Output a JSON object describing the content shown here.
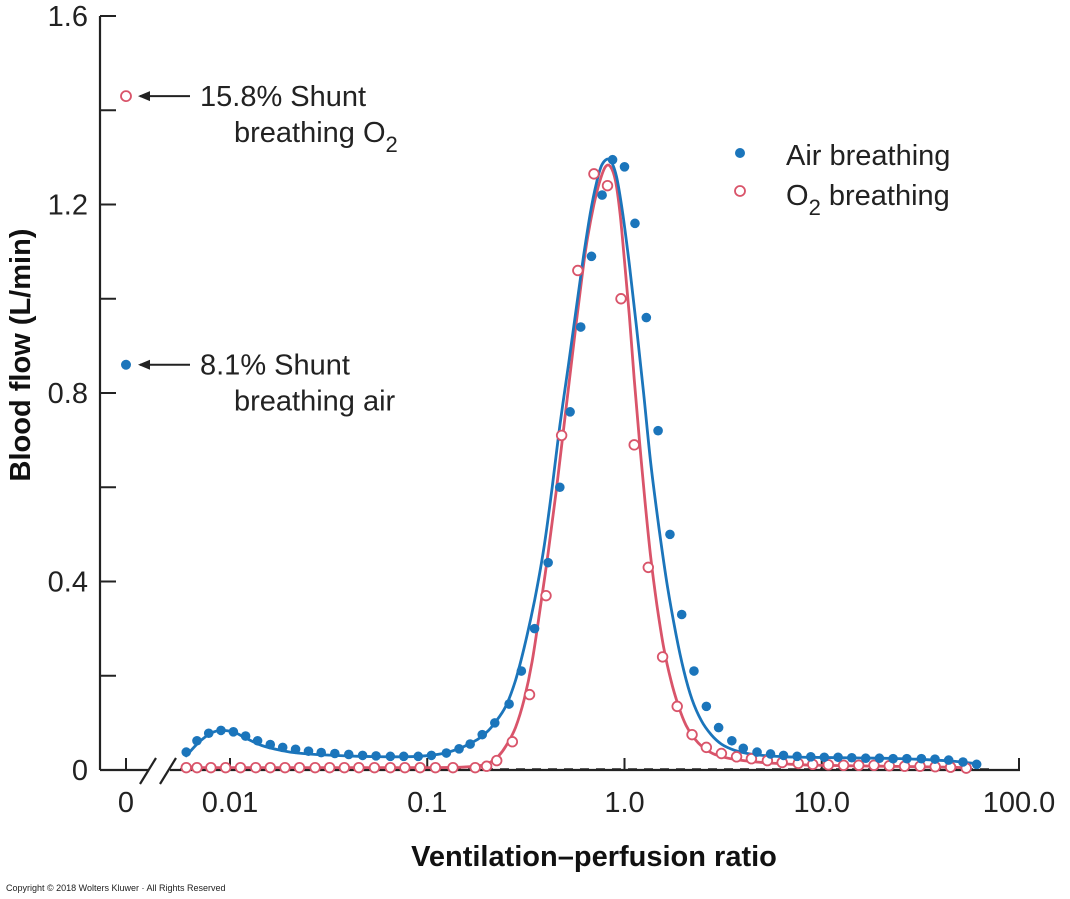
{
  "chart_data": {
    "type": "line",
    "title": "",
    "xlabel": "Ventilation–perfusion ratio",
    "ylabel": "Blood flow (L/min)",
    "x_scale": "log",
    "xlim": [
      0.005,
      100
    ],
    "ylim": [
      0,
      1.6
    ],
    "x_ticks": [
      {
        "value": 0,
        "label": "0"
      },
      {
        "value": 0.01,
        "label": "0.01"
      },
      {
        "value": 0.1,
        "label": "0.1"
      },
      {
        "value": 1.0,
        "label": "1.0"
      },
      {
        "value": 10.0,
        "label": "10.0"
      },
      {
        "value": 100.0,
        "label": "100.0"
      }
    ],
    "y_ticks": [
      {
        "value": 0,
        "label": "0"
      },
      {
        "value": 0.2,
        "label": ""
      },
      {
        "value": 0.4,
        "label": "0.4"
      },
      {
        "value": 0.6,
        "label": ""
      },
      {
        "value": 0.8,
        "label": "0.8"
      },
      {
        "value": 1.0,
        "label": ""
      },
      {
        "value": 1.2,
        "label": "1.2"
      },
      {
        "value": 1.4,
        "label": ""
      },
      {
        "value": 1.6,
        "label": "1.6"
      }
    ],
    "series": [
      {
        "name": "Air breathing",
        "color": "#1b75bb",
        "marker": "filled-circle",
        "curve_x": [
          0.006,
          0.007,
          0.008,
          0.009,
          0.0105,
          0.012,
          0.0145,
          0.018,
          0.022,
          0.03,
          0.045,
          0.065,
          0.09,
          0.12,
          0.15,
          0.18,
          0.2,
          0.22,
          0.25,
          0.28,
          0.31,
          0.35,
          0.39,
          0.43,
          0.47,
          0.52,
          0.57,
          0.62,
          0.67,
          0.72,
          0.77,
          0.84,
          0.91,
          0.98,
          1.06,
          1.15,
          1.25,
          1.36,
          1.5,
          1.65,
          1.82,
          2.0,
          2.2,
          2.45,
          2.75,
          3.1,
          3.6,
          4.2,
          5.0,
          6.5,
          8.5,
          12,
          20,
          30,
          45,
          62
        ],
        "curve_y": [
          0.03,
          0.06,
          0.078,
          0.084,
          0.08,
          0.068,
          0.052,
          0.042,
          0.036,
          0.032,
          0.029,
          0.028,
          0.029,
          0.035,
          0.048,
          0.065,
          0.08,
          0.1,
          0.135,
          0.19,
          0.26,
          0.36,
          0.47,
          0.6,
          0.73,
          0.86,
          0.98,
          1.09,
          1.18,
          1.245,
          1.285,
          1.295,
          1.26,
          1.18,
          1.07,
          0.94,
          0.8,
          0.65,
          0.51,
          0.39,
          0.29,
          0.21,
          0.15,
          0.105,
          0.075,
          0.055,
          0.042,
          0.035,
          0.031,
          0.028,
          0.027,
          0.026,
          0.025,
          0.023,
          0.019,
          0.013
        ],
        "points_x": [
          0.006,
          0.0068,
          0.0078,
          0.009,
          0.0104,
          0.012,
          0.0138,
          0.016,
          0.0185,
          0.0215,
          0.025,
          0.029,
          0.034,
          0.04,
          0.047,
          0.055,
          0.065,
          0.076,
          0.09,
          0.105,
          0.125,
          0.145,
          0.165,
          0.19,
          0.22,
          0.26,
          0.3,
          0.35,
          0.41,
          0.47,
          0.53,
          0.6,
          0.68,
          0.77,
          0.87,
          1.0,
          1.13,
          1.29,
          1.48,
          1.7,
          1.95,
          2.25,
          2.6,
          3.0,
          3.5,
          4.0,
          4.7,
          5.5,
          6.4,
          7.5,
          8.8,
          10.3,
          12.1,
          14.2,
          16.7,
          19.6,
          23,
          27,
          32,
          37.5,
          44,
          52,
          61
        ],
        "points_y": [
          0.038,
          0.062,
          0.078,
          0.084,
          0.081,
          0.072,
          0.062,
          0.054,
          0.048,
          0.044,
          0.04,
          0.037,
          0.035,
          0.033,
          0.031,
          0.03,
          0.029,
          0.029,
          0.029,
          0.031,
          0.036,
          0.045,
          0.055,
          0.075,
          0.1,
          0.14,
          0.21,
          0.3,
          0.44,
          0.6,
          0.76,
          0.94,
          1.09,
          1.22,
          1.295,
          1.28,
          1.16,
          0.96,
          0.72,
          0.5,
          0.33,
          0.21,
          0.135,
          0.09,
          0.062,
          0.046,
          0.038,
          0.034,
          0.031,
          0.029,
          0.028,
          0.027,
          0.027,
          0.026,
          0.025,
          0.025,
          0.024,
          0.024,
          0.024,
          0.023,
          0.021,
          0.017,
          0.012
        ]
      },
      {
        "name": "O₂ breathing",
        "color": "#d9546a",
        "marker": "open-circle",
        "curve_x": [
          0.006,
          0.01,
          0.02,
          0.05,
          0.1,
          0.15,
          0.19,
          0.21,
          0.23,
          0.25,
          0.28,
          0.31,
          0.34,
          0.37,
          0.41,
          0.45,
          0.49,
          0.53,
          0.57,
          0.61,
          0.65,
          0.7,
          0.75,
          0.8,
          0.85,
          0.9,
          0.95,
          1.0,
          1.06,
          1.12,
          1.19,
          1.27,
          1.36,
          1.46,
          1.58,
          1.72,
          1.88,
          2.05,
          2.25,
          2.5,
          2.8,
          3.2,
          3.7,
          4.4,
          5.3,
          6.5,
          8,
          10,
          14,
          20,
          30,
          45,
          55
        ],
        "curve_y": [
          0.005,
          0.005,
          0.005,
          0.005,
          0.005,
          0.006,
          0.01,
          0.017,
          0.03,
          0.05,
          0.09,
          0.15,
          0.23,
          0.33,
          0.46,
          0.59,
          0.72,
          0.84,
          0.95,
          1.05,
          1.13,
          1.2,
          1.25,
          1.28,
          1.28,
          1.25,
          1.18,
          1.08,
          0.96,
          0.83,
          0.7,
          0.57,
          0.45,
          0.35,
          0.26,
          0.19,
          0.135,
          0.095,
          0.068,
          0.048,
          0.035,
          0.027,
          0.022,
          0.018,
          0.015,
          0.013,
          0.011,
          0.01,
          0.009,
          0.008,
          0.007,
          0.006,
          0.004
        ],
        "points_x": [
          0.006,
          0.0068,
          0.008,
          0.0095,
          0.0113,
          0.0135,
          0.016,
          0.019,
          0.0225,
          0.027,
          0.032,
          0.038,
          0.045,
          0.054,
          0.065,
          0.077,
          0.092,
          0.11,
          0.135,
          0.175,
          0.2,
          0.225,
          0.27,
          0.33,
          0.4,
          0.48,
          0.58,
          0.7,
          0.82,
          0.96,
          1.12,
          1.32,
          1.56,
          1.85,
          2.2,
          2.6,
          3.1,
          3.7,
          4.4,
          5.3,
          6.3,
          7.6,
          9.0,
          10.8,
          12.9,
          15.4,
          18.4,
          22,
          26.3,
          31.5,
          37.6,
          45,
          54
        ],
        "points_y": [
          0.005,
          0.005,
          0.005,
          0.005,
          0.005,
          0.005,
          0.005,
          0.005,
          0.005,
          0.005,
          0.005,
          0.005,
          0.005,
          0.005,
          0.005,
          0.005,
          0.005,
          0.005,
          0.005,
          0.005,
          0.008,
          0.02,
          0.06,
          0.16,
          0.37,
          0.71,
          1.06,
          1.265,
          1.24,
          1.0,
          0.69,
          0.43,
          0.24,
          0.135,
          0.075,
          0.048,
          0.035,
          0.028,
          0.024,
          0.02,
          0.016,
          0.014,
          0.012,
          0.011,
          0.01,
          0.01,
          0.01,
          0.009,
          0.008,
          0.008,
          0.007,
          0.006,
          0.004
        ]
      }
    ],
    "shunt_points": [
      {
        "series": "Air breathing",
        "x": 0,
        "y": 0.86,
        "line1": "8.1% Shunt",
        "line2": "breathing air",
        "line2_sub": ""
      },
      {
        "series": "O₂ breathing",
        "x": 0,
        "y": 1.43,
        "line1": "15.8% Shunt",
        "line2": "breathing O",
        "line2_sub": "2"
      }
    ],
    "legend": {
      "position": "top-right",
      "items": [
        {
          "series": "Air breathing",
          "label": "Air breathing",
          "label_main": "Air breathing",
          "label_sub": "",
          "label_rest": ""
        },
        {
          "series": "O₂ breathing",
          "label": "O₂ breathing",
          "label_main": "O",
          "label_sub": "2",
          "label_rest": " breathing"
        }
      ]
    },
    "axis_break": true
  },
  "copyright": "Copyright © 2018 Wolters Kluwer · All Rights Reserved"
}
